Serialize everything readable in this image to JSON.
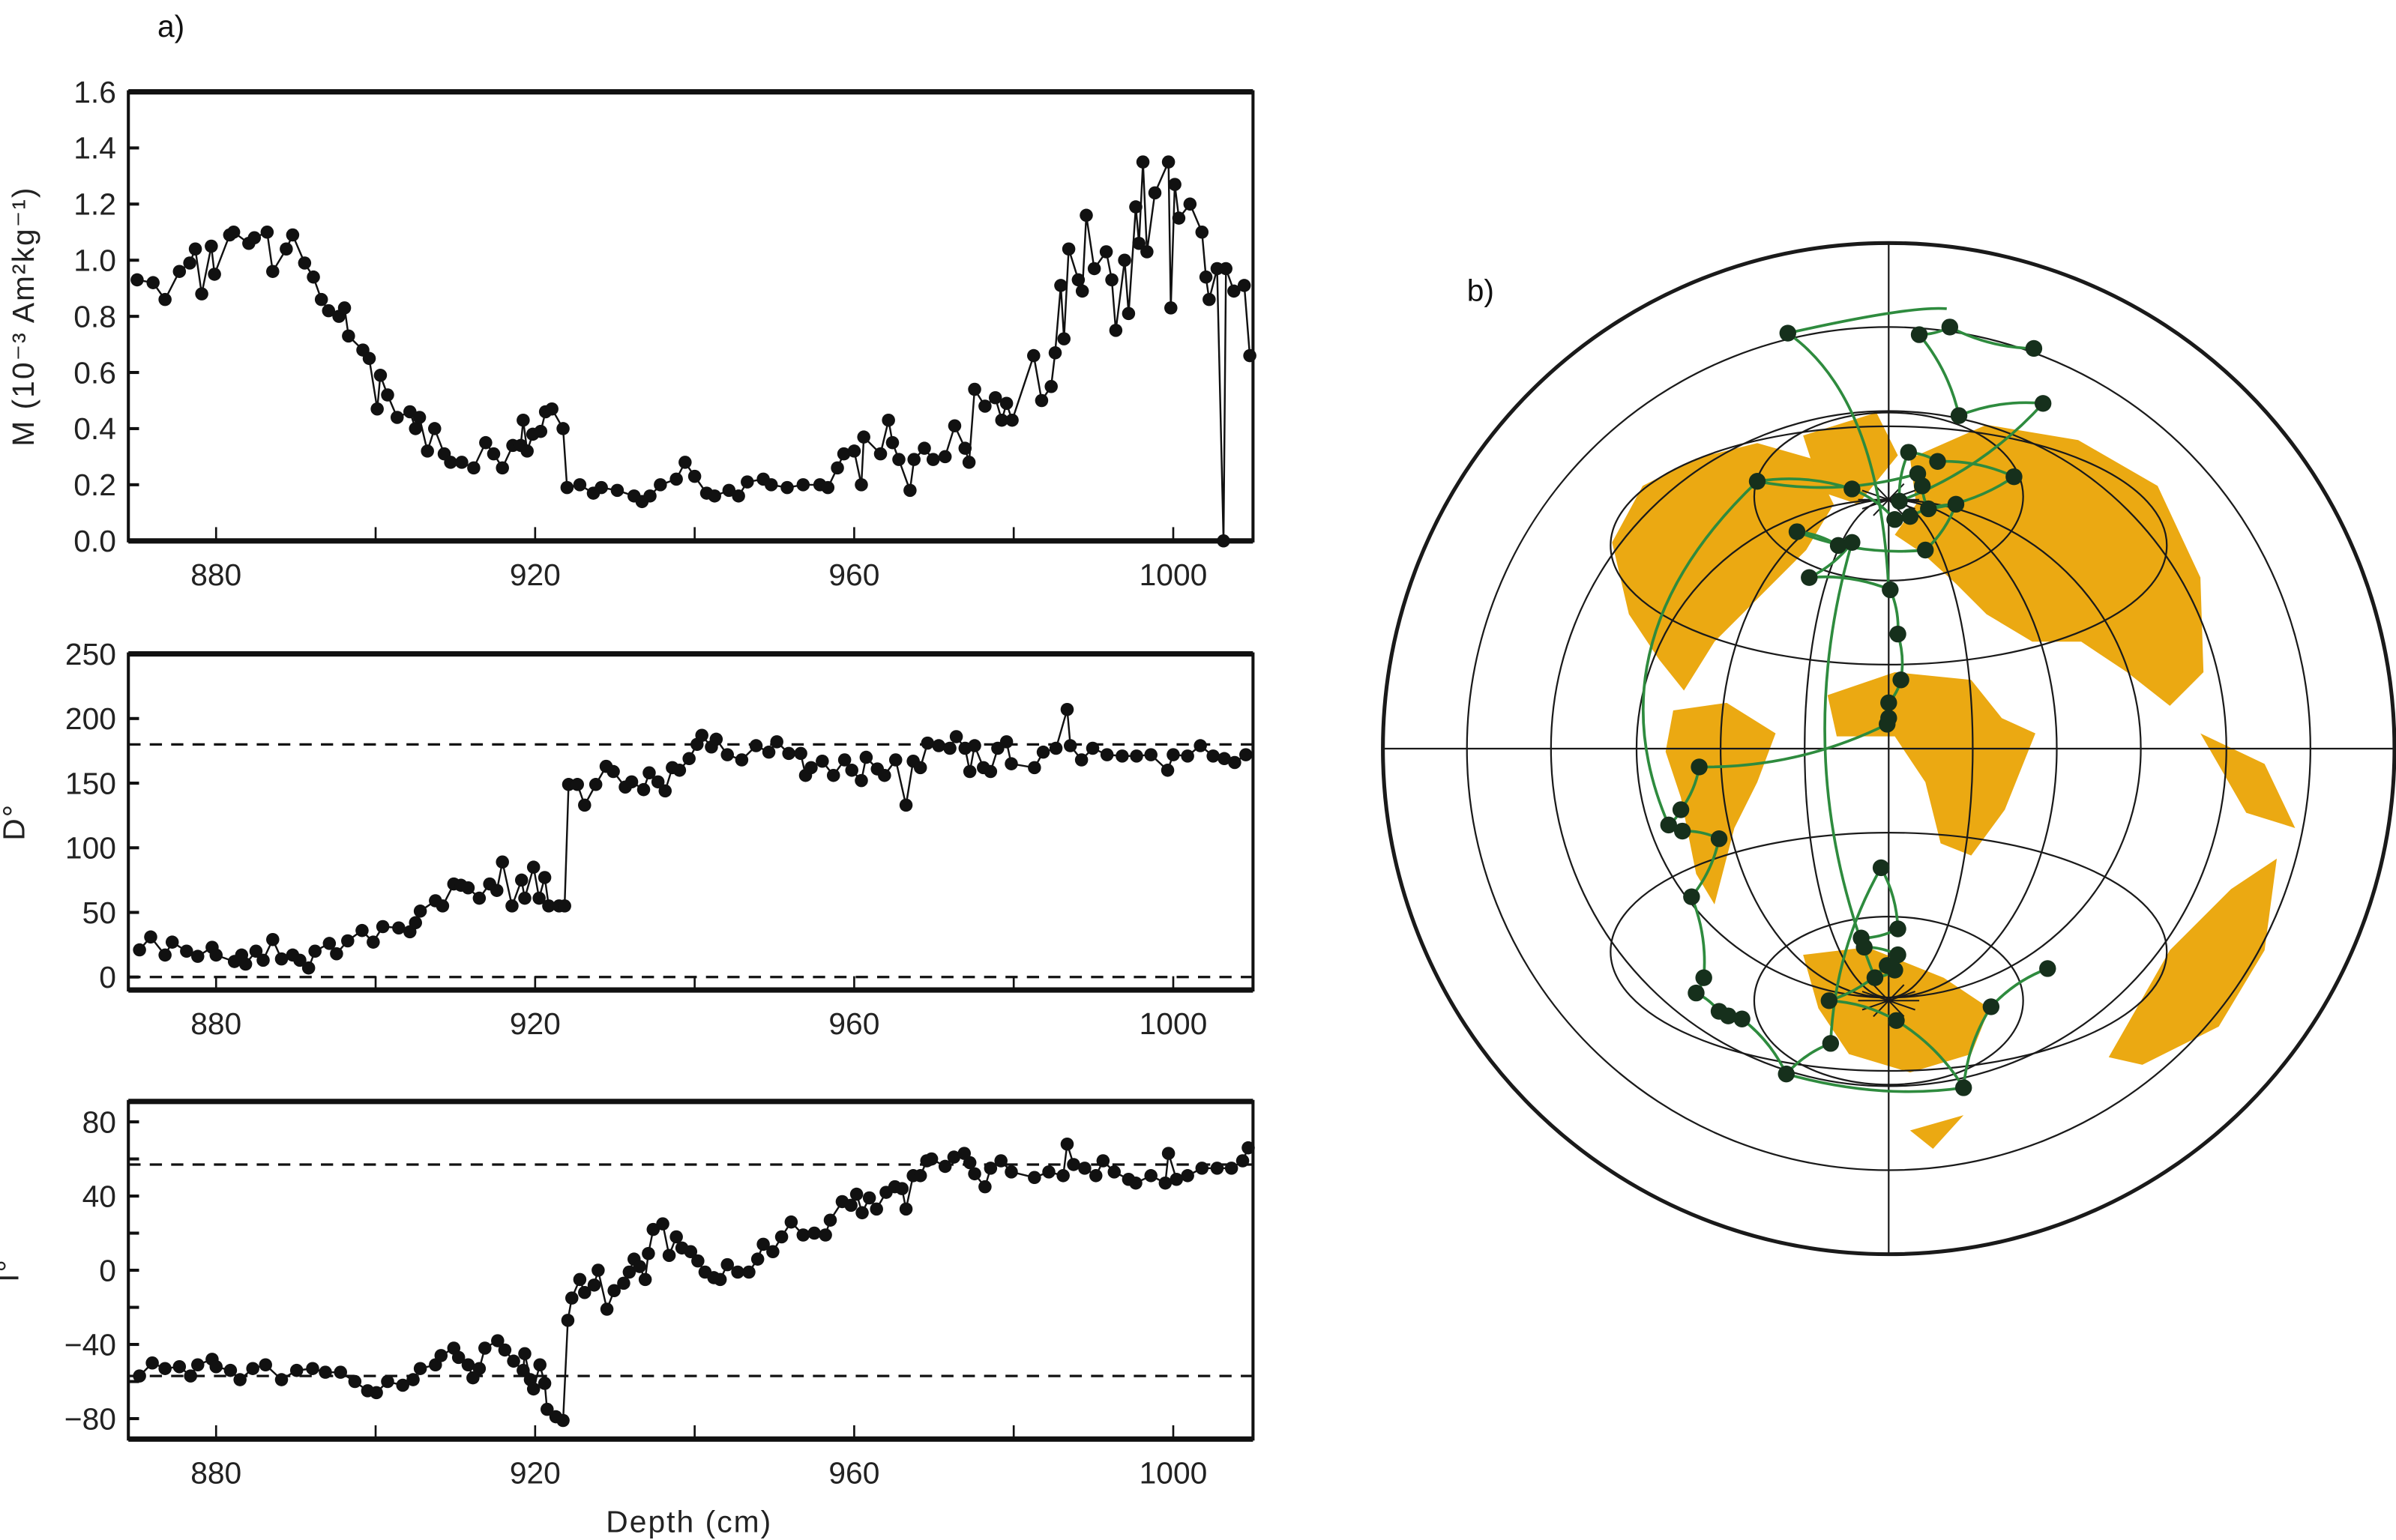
{
  "figure": {
    "panel_a_label": "a)",
    "panel_b_label": "b)",
    "xlabel": "Depth (cm)"
  },
  "colors": {
    "series": "#111111",
    "land": "#EBA912",
    "vgp_path": "#2E8B3E",
    "vgp_point": "#16301C",
    "grid": "#1a1a1a"
  },
  "chart_data": [
    {
      "type": "line",
      "name": "intensity",
      "ylabel": "M (10⁻³ Am²kg⁻¹)",
      "xlim": [
        869,
        1010
      ],
      "ylim": [
        0,
        1.6
      ],
      "xticks": [
        "880",
        "920",
        "960",
        "1000"
      ],
      "yticks": [
        "0.0",
        "0.2",
        "0.4",
        "0.6",
        "0.8",
        "1.0",
        "1.2",
        "1.4",
        "1.6"
      ],
      "reference_lines": [],
      "x": [
        870.1,
        872.1,
        873.6,
        875.4,
        876.7,
        877.4,
        878.2,
        879.4,
        879.8,
        881.7,
        882.2,
        884.1,
        884.8,
        886.4,
        887.1,
        888.8,
        889.6,
        891.1,
        892.2,
        893.2,
        894.1,
        895.4,
        896.1,
        896.6,
        898.4,
        899.2,
        900.2,
        900.6,
        901.5,
        902.7,
        904.3,
        905,
        905.5,
        906.5,
        907.4,
        908.6,
        909.4,
        910.8,
        912.3,
        913.8,
        914.8,
        915.9,
        917.2,
        918.2,
        918.5,
        919,
        919.7,
        920.7,
        921.3,
        922.1,
        923.5,
        924,
        925.6,
        927.3,
        928.3,
        930.3,
        932.4,
        933.4,
        934.4,
        935.7,
        937.7,
        938.8,
        940,
        941.5,
        942.5,
        944.3,
        945.5,
        946.6,
        948.6,
        949.6,
        951.6,
        953.6,
        955.7,
        956.7,
        957.9,
        958.7,
        960,
        960.9,
        961.2,
        963.3,
        964.3,
        964.8,
        965.6,
        967,
        967.5,
        968.8,
        969.9,
        971.4,
        972.6,
        973.9,
        974.4,
        975.1,
        976.4,
        977.7,
        978.5,
        979.1,
        979.8,
        982.5,
        983.5,
        984.7,
        985.2,
        985.9,
        986.3,
        986.9,
        988.1,
        988.6,
        989.1,
        990.1,
        991.6,
        992.3,
        992.8,
        993.9,
        994.4,
        995.3,
        995.7,
        996.2,
        996.7,
        997.7,
        999.4,
        999.7,
        1000.2,
        1000.7,
        1002.1,
        1003.6,
        1004.1,
        1004.5,
        1005.5,
        1006.3,
        1006.6,
        1007.6,
        1008.9,
        1009.6
      ],
      "y": [
        0.93,
        0.92,
        0.86,
        0.96,
        0.99,
        1.04,
        0.88,
        1.05,
        0.95,
        1.09,
        1.1,
        1.06,
        1.08,
        1.1,
        0.96,
        1.04,
        1.09,
        0.99,
        0.94,
        0.86,
        0.82,
        0.8,
        0.83,
        0.73,
        0.68,
        0.65,
        0.47,
        0.59,
        0.52,
        0.44,
        0.46,
        0.4,
        0.44,
        0.32,
        0.4,
        0.31,
        0.28,
        0.28,
        0.26,
        0.35,
        0.31,
        0.26,
        0.34,
        0.34,
        0.43,
        0.32,
        0.38,
        0.39,
        0.46,
        0.47,
        0.4,
        0.19,
        0.2,
        0.17,
        0.19,
        0.18,
        0.16,
        0.14,
        0.16,
        0.2,
        0.22,
        0.28,
        0.23,
        0.17,
        0.16,
        0.18,
        0.16,
        0.21,
        0.22,
        0.2,
        0.19,
        0.2,
        0.2,
        0.19,
        0.26,
        0.31,
        0.32,
        0.2,
        0.37,
        0.31,
        0.43,
        0.35,
        0.29,
        0.18,
        0.29,
        0.33,
        0.29,
        0.3,
        0.41,
        0.33,
        0.28,
        0.54,
        0.48,
        0.51,
        0.43,
        0.49,
        0.43,
        0.66,
        0.5,
        0.55,
        0.67,
        0.91,
        0.72,
        1.04,
        0.93,
        0.89,
        1.16,
        0.97,
        1.03,
        0.93,
        0.75,
        1.0,
        0.81,
        1.19,
        1.06,
        1.35,
        1.03,
        1.24,
        1.35,
        0.83,
        1.27,
        1.15,
        1.2,
        1.1,
        0.94,
        0.86,
        0.97,
        0.0,
        0.97,
        0.89,
        0.91,
        0.66
      ]
    },
    {
      "type": "line",
      "name": "declination",
      "ylabel": "D°",
      "xlim": [
        869,
        1010
      ],
      "ylim": [
        -10,
        250
      ],
      "xticks": [
        "880",
        "920",
        "960",
        "1000"
      ],
      "yticks": [
        "0",
        "50",
        "100",
        "150",
        "200",
        "250"
      ],
      "reference_lines": [
        0,
        180
      ],
      "x": [
        870.4,
        871.8,
        873.6,
        874.5,
        876.3,
        877.7,
        879.5,
        880,
        882.3,
        883.2,
        883.7,
        885,
        885.9,
        887.1,
        888.2,
        889.6,
        890.5,
        891.6,
        892.4,
        894.2,
        895.1,
        896.5,
        898.3,
        899.7,
        900.9,
        902.9,
        904.3,
        905,
        905.6,
        907.5,
        908.4,
        909.8,
        910.7,
        911.6,
        913,
        914.3,
        915.2,
        915.9,
        917.1,
        918.3,
        918.7,
        919.8,
        920.5,
        921.2,
        921.7,
        923,
        923.7,
        924.2,
        925.3,
        926.2,
        927.6,
        928.9,
        929.8,
        931.3,
        932.1,
        933.6,
        934.3,
        935.4,
        936.3,
        937.2,
        938.1,
        939.3,
        940.3,
        940.9,
        942.1,
        942.7,
        944.1,
        945.9,
        947.7,
        949.3,
        950.3,
        951.8,
        953.3,
        953.9,
        954.6,
        956,
        957.4,
        958.8,
        959.7,
        960.9,
        961.5,
        962.9,
        963.8,
        965.2,
        966.5,
        967.4,
        968.3,
        969.2,
        970.6,
        972,
        972.8,
        973.9,
        974.5,
        975.1,
        976.2,
        977.1,
        978,
        979.1,
        979.7,
        982.6,
        983.7,
        985.3,
        986.7,
        987.1,
        988.5,
        989.9,
        991.7,
        993.6,
        995.4,
        997.2,
        999.3,
        1000,
        1001.8,
        1003.4,
        1005,
        1006.4,
        1007.7,
        1009.1
      ],
      "y": [
        21,
        31,
        17,
        27,
        20,
        16,
        23,
        17,
        12,
        17,
        10,
        20,
        13,
        29,
        14,
        17,
        13,
        7,
        20,
        26,
        18,
        28,
        36,
        27,
        39,
        38,
        35,
        42,
        51,
        59,
        55,
        72,
        71,
        69,
        61,
        72,
        67,
        89,
        55,
        75,
        61,
        85,
        61,
        77,
        55,
        55,
        55,
        149,
        149,
        133,
        149,
        163,
        159,
        147,
        151,
        145,
        158,
        151,
        144,
        162,
        160,
        169,
        180,
        187,
        178,
        184,
        172,
        168,
        179,
        174,
        182,
        173,
        173,
        156,
        162,
        167,
        156,
        168,
        160,
        152,
        170,
        161,
        156,
        168,
        133,
        167,
        162,
        181,
        179,
        177,
        186,
        177,
        159,
        179,
        162,
        159,
        177,
        182,
        165,
        162,
        174,
        177,
        207,
        179,
        168,
        177,
        172,
        171,
        171,
        172,
        160,
        172,
        171,
        179,
        171,
        169,
        166,
        172
      ]
    },
    {
      "type": "line",
      "name": "inclination",
      "ylabel": "I°",
      "xlim": [
        869,
        1010
      ],
      "ylim": [
        -91,
        91
      ],
      "xticks": [
        "880",
        "920",
        "960",
        "1000"
      ],
      "yticks": [
        "−80",
        "−40",
        "0",
        "40",
        "80"
      ],
      "reference_lines": [
        -57,
        57
      ],
      "x": [
        870.4,
        872,
        873.6,
        875.4,
        876.8,
        877.7,
        879.5,
        880,
        881.8,
        883,
        884.6,
        886.2,
        888.2,
        890.1,
        892.1,
        893.7,
        895.6,
        897.4,
        899,
        900.1,
        901.5,
        903.4,
        904.7,
        905.6,
        907.5,
        908.2,
        909.8,
        910.4,
        911.6,
        912.2,
        913,
        913.7,
        915.3,
        916.2,
        917.3,
        918.5,
        918.7,
        919.4,
        919.8,
        920.6,
        921.2,
        921.5,
        922.6,
        923.5,
        924.1,
        924.6,
        925.6,
        926.2,
        927.4,
        927.9,
        929,
        929.9,
        931.1,
        931.8,
        932.4,
        933.1,
        933.8,
        934.2,
        934.8,
        936,
        936.8,
        937.7,
        938.4,
        939.5,
        940.4,
        941.3,
        942.4,
        943.2,
        944.1,
        945.4,
        946.8,
        947.9,
        948.6,
        949.8,
        950.9,
        952.1,
        953.6,
        955,
        956.4,
        957,
        958.5,
        959.6,
        960.3,
        961,
        961.9,
        962.8,
        964,
        965.1,
        966,
        966.5,
        967.4,
        968.3,
        969.1,
        969.7,
        971.4,
        972.5,
        973.8,
        974.5,
        975.1,
        976.4,
        977.1,
        978.4,
        979.7,
        982.6,
        984.4,
        986.2,
        986.7,
        987.5,
        988.9,
        990.3,
        991.2,
        992.6,
        994.4,
        995.3,
        997.2,
        999,
        999.4,
        1000.4,
        1001.8,
        1003.6,
        1005.5,
        1007.3,
        1008.7,
        1009.4
      ],
      "y": [
        -57,
        -50,
        -53,
        -52,
        -57,
        -51,
        -48,
        -52,
        -54,
        -59,
        -53,
        -51,
        -59,
        -54,
        -53,
        -55,
        -55,
        -60,
        -65,
        -66,
        -60,
        -62,
        -59,
        -53,
        -51,
        -46,
        -42,
        -47,
        -51,
        -58,
        -53,
        -42,
        -38,
        -43,
        -49,
        -54,
        -45,
        -59,
        -64,
        -51,
        -61,
        -75,
        -79,
        -81,
        -27,
        -15,
        -5,
        -12,
        -8,
        0,
        -21,
        -11,
        -7,
        -1,
        6,
        2,
        -5,
        9,
        22,
        25,
        8,
        18,
        12,
        10,
        5,
        -1,
        -4,
        -5,
        3,
        -1,
        -1,
        6,
        14,
        10,
        18,
        26,
        19,
        20,
        19,
        27,
        37,
        35,
        41,
        31,
        39,
        33,
        42,
        45,
        44,
        33,
        51,
        51,
        59,
        60,
        56,
        61,
        63,
        58,
        52,
        45,
        55,
        59,
        53,
        50,
        53,
        51,
        68,
        57,
        55,
        51,
        59,
        53,
        49,
        47,
        51,
        47,
        63,
        49,
        51,
        55,
        55,
        55,
        59,
        66
      ]
    }
  ]
}
